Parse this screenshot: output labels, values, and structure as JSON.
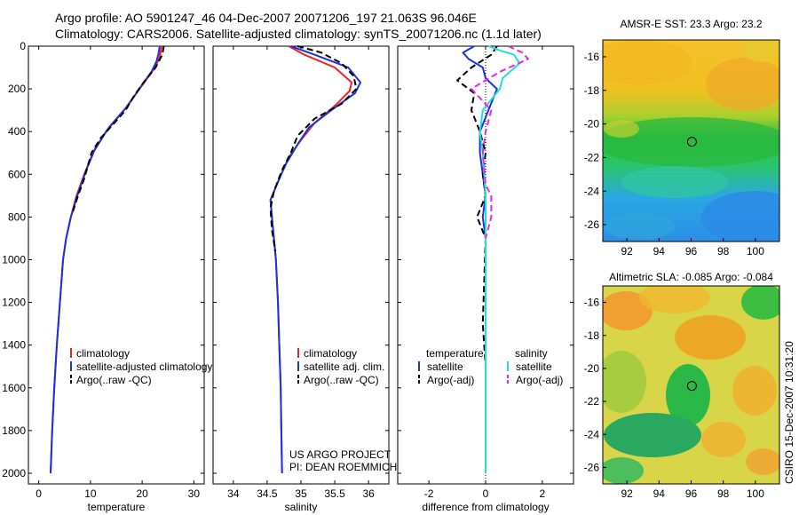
{
  "header": {
    "line1": "Argo profile: AO 5901247_46 04-Dec-2007 20071206_197 21.063S 96.046E",
    "line2": "Climatology: CARS2006. Satellite-adjusted climatology: synTS_20071206.nc (1.1d later)"
  },
  "side_label": "CSIRO 15-Dec-2007 10:31:20",
  "colors": {
    "climatology": "#ee2222",
    "satellite": "#1a33dd",
    "argo": "#000000",
    "sal_satellite": "#22dddd",
    "sal_argo": "#ee22ee"
  },
  "chart_data": [
    {
      "type": "line",
      "panel": "temperature",
      "xlabel": "temperature",
      "ylabel": "",
      "xlim": [
        -2,
        32
      ],
      "ylim": [
        2050,
        0
      ],
      "xticks": [
        0,
        10,
        20,
        30
      ],
      "yticks": [
        0,
        200,
        400,
        600,
        800,
        1000,
        1200,
        1400,
        1600,
        1800,
        2000
      ],
      "legend": [
        "climatology",
        "satellite-adjusted climatology",
        "Argo(..raw -QC)"
      ],
      "series": [
        {
          "name": "climatology",
          "style": "solid",
          "color": "#ee2222",
          "points": [
            [
              23.8,
              0
            ],
            [
              23.4,
              50
            ],
            [
              22.5,
              100
            ],
            [
              21.0,
              150
            ],
            [
              19.5,
              200
            ],
            [
              16.5,
              300
            ],
            [
              13.0,
              400
            ],
            [
              10.5,
              500
            ],
            [
              8.8,
              600
            ],
            [
              7.3,
              700
            ],
            [
              6.2,
              800
            ],
            [
              5.3,
              900
            ],
            [
              4.7,
              1000
            ],
            [
              4.1,
              1200
            ],
            [
              3.5,
              1400
            ],
            [
              3.0,
              1600
            ],
            [
              2.6,
              1800
            ],
            [
              2.3,
              2000
            ]
          ]
        },
        {
          "name": "satellite-adjusted climatology",
          "style": "solid",
          "color": "#1a33dd",
          "points": [
            [
              23.4,
              0
            ],
            [
              23.2,
              30
            ],
            [
              22.8,
              70
            ],
            [
              21.8,
              120
            ],
            [
              20.0,
              180
            ],
            [
              17.2,
              280
            ],
            [
              13.6,
              380
            ],
            [
              10.9,
              480
            ],
            [
              9.2,
              580
            ],
            [
              7.6,
              690
            ],
            [
              6.2,
              800
            ],
            [
              5.3,
              900
            ],
            [
              4.7,
              1000
            ],
            [
              4.1,
              1200
            ],
            [
              3.5,
              1400
            ],
            [
              3.0,
              1600
            ],
            [
              2.6,
              1800
            ],
            [
              2.3,
              2000
            ]
          ]
        },
        {
          "name": "Argo(..raw -QC)",
          "style": "dashed",
          "color": "#000000",
          "points": [
            [
              24.2,
              0
            ],
            [
              23.9,
              40
            ],
            [
              22.6,
              100
            ],
            [
              20.6,
              160
            ],
            [
              18.5,
              230
            ],
            [
              16.8,
              300
            ],
            [
              14.6,
              360
            ],
            [
              12.0,
              430
            ],
            [
              10.2,
              500
            ],
            [
              9.5,
              560
            ],
            [
              8.8,
              620
            ],
            [
              7.6,
              700
            ],
            [
              6.4,
              790
            ]
          ]
        }
      ]
    },
    {
      "type": "line",
      "panel": "salinity",
      "xlabel": "salinity",
      "ylabel": "",
      "xlim": [
        33.7,
        36.3
      ],
      "ylim": [
        2050,
        0
      ],
      "xticks": [
        34,
        34.5,
        35,
        35.5,
        36
      ],
      "legend": [
        "climatology",
        "satellite adj. clim.",
        "Argo(..raw -QC)"
      ],
      "series": [
        {
          "name": "climatology",
          "style": "solid",
          "color": "#ee2222",
          "points": [
            [
              34.82,
              0
            ],
            [
              35.05,
              40
            ],
            [
              35.5,
              100
            ],
            [
              35.75,
              170
            ],
            [
              35.72,
              210
            ],
            [
              35.5,
              280
            ],
            [
              35.2,
              360
            ],
            [
              35.0,
              440
            ],
            [
              34.82,
              520
            ],
            [
              34.68,
              620
            ],
            [
              34.55,
              720
            ],
            [
              34.57,
              800
            ],
            [
              34.6,
              900
            ],
            [
              34.63,
              1000
            ],
            [
              34.66,
              1200
            ],
            [
              34.68,
              1400
            ],
            [
              34.7,
              1600
            ],
            [
              34.71,
              1800
            ],
            [
              34.72,
              2000
            ]
          ]
        },
        {
          "name": "satellite adj. clim.",
          "style": "solid",
          "color": "#1a33dd",
          "points": [
            [
              34.85,
              0
            ],
            [
              35.2,
              40
            ],
            [
              35.7,
              100
            ],
            [
              35.88,
              170
            ],
            [
              35.8,
              220
            ],
            [
              35.45,
              300
            ],
            [
              35.12,
              380
            ],
            [
              34.95,
              460
            ],
            [
              34.78,
              550
            ],
            [
              34.64,
              650
            ],
            [
              34.55,
              720
            ],
            [
              34.57,
              800
            ],
            [
              34.6,
              900
            ],
            [
              34.63,
              1000
            ],
            [
              34.66,
              1200
            ],
            [
              34.68,
              1400
            ],
            [
              34.7,
              1600
            ],
            [
              34.71,
              1800
            ],
            [
              34.72,
              2000
            ]
          ]
        },
        {
          "name": "Argo(..raw -QC)",
          "style": "dashed",
          "color": "#000000",
          "points": [
            [
              34.95,
              0
            ],
            [
              35.3,
              30
            ],
            [
              35.6,
              80
            ],
            [
              35.78,
              140
            ],
            [
              35.82,
              200
            ],
            [
              35.6,
              270
            ],
            [
              35.2,
              340
            ],
            [
              34.95,
              420
            ],
            [
              34.85,
              500
            ],
            [
              34.72,
              580
            ],
            [
              34.6,
              680
            ],
            [
              34.55,
              760
            ],
            [
              34.57,
              860
            ],
            [
              34.62,
              960
            ]
          ]
        }
      ],
      "annotation": [
        "US ARGO PROJECT",
        "PI: DEAN ROEMMICH"
      ]
    },
    {
      "type": "line",
      "panel": "difference",
      "xlabel": "difference from climatology",
      "ylabel": "",
      "xlim": [
        -3.1,
        3.1
      ],
      "ylim": [
        2050,
        0
      ],
      "xticks": [
        -2,
        0,
        2
      ],
      "legend_groups": [
        {
          "title": "temperature",
          "items": [
            "satellite",
            "Argo(-adj)"
          ]
        },
        {
          "title": "salinity",
          "items": [
            "satellite",
            "Argo(-adj)"
          ]
        }
      ],
      "series": [
        {
          "name": "temperature satellite",
          "style": "solid",
          "color": "#1a33dd",
          "points": [
            [
              -0.4,
              0
            ],
            [
              -0.8,
              30
            ],
            [
              -0.6,
              60
            ],
            [
              -0.1,
              100
            ],
            [
              0.0,
              150
            ],
            [
              0.4,
              200
            ],
            [
              0.1,
              300
            ],
            [
              -0.2,
              400
            ],
            [
              -0.2,
              500
            ],
            [
              -0.1,
              600
            ],
            [
              0.0,
              700
            ],
            [
              -0.1,
              800
            ],
            [
              0.0,
              900
            ],
            [
              0.0,
              1200
            ],
            [
              0.0,
              1600
            ],
            [
              0.0,
              2000
            ]
          ]
        },
        {
          "name": "temperature Argo(-adj)",
          "style": "dashed",
          "color": "#000000",
          "points": [
            [
              0.4,
              0
            ],
            [
              0.2,
              40
            ],
            [
              -0.5,
              100
            ],
            [
              -1.0,
              160
            ],
            [
              -0.4,
              220
            ],
            [
              -0.5,
              300
            ],
            [
              -0.2,
              400
            ],
            [
              0.0,
              500
            ],
            [
              -0.1,
              600
            ],
            [
              0.0,
              700
            ],
            [
              -0.3,
              800
            ],
            [
              0.0,
              900
            ],
            [
              -0.1,
              1300
            ],
            [
              0.0,
              1500
            ]
          ]
        },
        {
          "name": "salinity satellite",
          "style": "solid",
          "color": "#22dddd",
          "points": [
            [
              0.1,
              0
            ],
            [
              0.5,
              20
            ],
            [
              1.0,
              40
            ],
            [
              1.2,
              80
            ],
            [
              0.6,
              150
            ],
            [
              0.5,
              200
            ],
            [
              -0.1,
              300
            ],
            [
              -0.2,
              400
            ],
            [
              -0.1,
              500
            ],
            [
              -0.05,
              600
            ],
            [
              0.0,
              700
            ],
            [
              0.0,
              900
            ],
            [
              0.0,
              1200
            ],
            [
              0.0,
              1600
            ],
            [
              0.0,
              2000
            ]
          ]
        },
        {
          "name": "salinity Argo(-adj)",
          "style": "dashed",
          "color": "#ee22ee",
          "points": [
            [
              0.8,
              0
            ],
            [
              1.3,
              30
            ],
            [
              1.5,
              60
            ],
            [
              0.5,
              120
            ],
            [
              -0.5,
              200
            ],
            [
              0.2,
              300
            ],
            [
              0.0,
              400
            ],
            [
              -0.1,
              500
            ],
            [
              0.0,
              650
            ],
            [
              0.2,
              700
            ],
            [
              0.2,
              800
            ],
            [
              0.0,
              900
            ]
          ]
        }
      ]
    },
    {
      "type": "heatmap",
      "panel": "sst_map",
      "title": "AMSR-E SST: 23.3 Argo: 23.2",
      "xlim": [
        90.5,
        101.5
      ],
      "ylim": [
        -27,
        -15
      ],
      "xticks": [
        92,
        94,
        96,
        98,
        100
      ],
      "yticks": [
        -16,
        -18,
        -20,
        -22,
        -24,
        -26
      ],
      "marker": [
        96.05,
        -21.06
      ]
    },
    {
      "type": "heatmap",
      "panel": "sla_map",
      "title": "Altimetric SLA: -0.085 Argo: -0.084",
      "xlim": [
        90.5,
        101.5
      ],
      "ylim": [
        -27,
        -15
      ],
      "xticks": [
        92,
        94,
        96,
        98,
        100
      ],
      "yticks": [
        -16,
        -18,
        -20,
        -22,
        -24,
        -26
      ],
      "marker": [
        96.05,
        -21.06
      ]
    }
  ]
}
